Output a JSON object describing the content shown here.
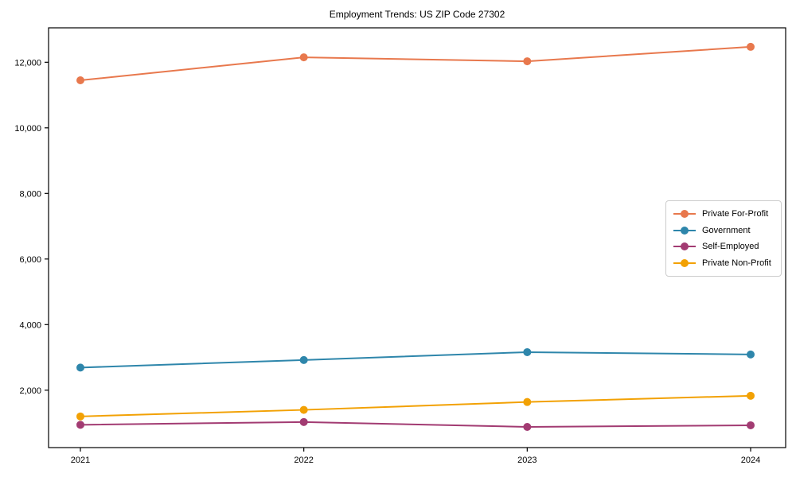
{
  "chart_data": {
    "type": "line",
    "title": "Employment Trends: US ZIP Code 27302",
    "xlabel": "",
    "ylabel": "",
    "x_labels": [
      "2021",
      "2022",
      "2023",
      "2024"
    ],
    "series": [
      {
        "name": "Private For-Profit",
        "color": "#E8784D",
        "values": [
          11450,
          12150,
          12030,
          12470
        ]
      },
      {
        "name": "Government",
        "color": "#2E86AB",
        "values": [
          2690,
          2920,
          3160,
          3090
        ]
      },
      {
        "name": "Self-Employed",
        "color": "#A23B72",
        "values": [
          945,
          1030,
          880,
          930
        ]
      },
      {
        "name": "Private Non-Profit",
        "color": "#F2A104",
        "values": [
          1200,
          1400,
          1640,
          1830
        ]
      }
    ],
    "ylim": [
      250,
      13050
    ],
    "yticks": [
      2000,
      4000,
      6000,
      8000,
      10000,
      12000
    ],
    "ytick_labels": [
      "2,000",
      "4,000",
      "6,000",
      "8,000",
      "10,000",
      "12,000"
    ],
    "grid": false,
    "marker": "circle",
    "legend_position": "right-middle"
  }
}
